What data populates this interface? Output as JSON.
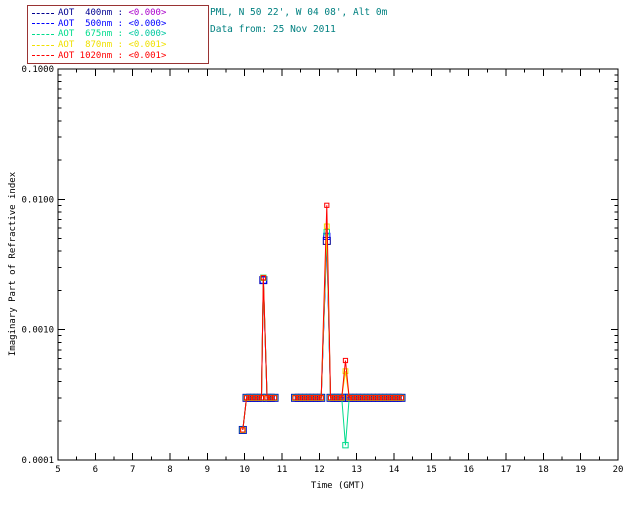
{
  "header": {
    "line1": "PML, N 50 22', W 04 08', Alt 0m",
    "line2": "Data from: 25 Nov 2011",
    "color": "#008080"
  },
  "legend": {
    "border_color": "#993333",
    "rows": [
      {
        "label": "AOT  400nm :",
        "value": "<0.000>",
        "color": "#000090",
        "value_color": "#aa00cc"
      },
      {
        "label": "AOT  500nm :",
        "value": "<0.000>",
        "color": "#0000ff",
        "value_color": "#0000ff"
      },
      {
        "label": "AOT  675nm :",
        "value": "<0.000>",
        "color": "#00dc8c",
        "value_color": "#00c8a0"
      },
      {
        "label": "AOT  870nm :",
        "value": "<0.001>",
        "color": "#f0e000",
        "value_color": "#f0e000"
      },
      {
        "label": "AOT 1020nm :",
        "value": "<0.001>",
        "color": "#ff0000",
        "value_color": "#ff0000"
      }
    ]
  },
  "chart_data": {
    "type": "line",
    "title": "",
    "xlabel": "Time (GMT)",
    "ylabel": "Imaginary Part of Refractive index",
    "xlim": [
      5,
      20
    ],
    "ylim": [
      0.0001,
      0.1
    ],
    "yscale": "log",
    "grid": false,
    "legend_position": "top-left",
    "xtick_values": [
      5,
      6,
      7,
      8,
      9,
      10,
      11,
      12,
      13,
      14,
      15,
      16,
      17,
      18,
      19,
      20
    ],
    "xtick_labels": [
      "5",
      "6",
      "7",
      "8",
      "9",
      "10",
      "11",
      "12",
      "13",
      "14",
      "15",
      "16",
      "17",
      "18",
      "19",
      "20"
    ],
    "ytick_values": [
      0.0001,
      0.001,
      0.01,
      0.1
    ],
    "ytick_labels": [
      "0.0001",
      "0.0010",
      "0.0100",
      "0.1000"
    ],
    "marker": "open-square",
    "series": [
      {
        "name": "AOT 400nm",
        "wavelength_nm": 400,
        "color": "#000090",
        "marker_size": 7,
        "segments": [
          {
            "x": [
              9.95,
              10.05,
              10.15,
              10.25,
              10.35,
              10.45,
              10.5,
              10.6,
              10.7,
              10.8
            ],
            "y": [
              0.00017,
              0.0003,
              0.0003,
              0.0003,
              0.0003,
              0.0003,
              0.0024,
              0.0003,
              0.0003,
              0.0003
            ]
          },
          {
            "x": [
              11.35,
              11.45,
              11.55,
              11.65,
              11.75,
              11.85,
              11.95,
              12.05,
              12.2,
              12.3,
              12.4,
              12.5,
              12.6,
              12.7,
              12.8,
              12.9,
              13.0,
              13.1,
              13.2,
              13.3,
              13.4,
              13.5,
              13.6,
              13.7,
              13.8,
              13.9,
              14.0,
              14.1,
              14.2
            ],
            "y": [
              0.0003,
              0.0003,
              0.0003,
              0.0003,
              0.0003,
              0.0003,
              0.0003,
              0.0003,
              0.0048,
              0.0003,
              0.0003,
              0.0003,
              0.0003,
              0.0003,
              0.0003,
              0.0003,
              0.0003,
              0.0003,
              0.0003,
              0.0003,
              0.0003,
              0.0003,
              0.0003,
              0.0003,
              0.0003,
              0.0003,
              0.0003,
              0.0003,
              0.0003
            ]
          }
        ]
      },
      {
        "name": "AOT 500nm",
        "wavelength_nm": 500,
        "color": "#0000ff",
        "marker_size": 6.2,
        "segments": [
          {
            "x": [
              9.95,
              10.05,
              10.15,
              10.25,
              10.35,
              10.45,
              10.5,
              10.6,
              10.7,
              10.8
            ],
            "y": [
              0.00017,
              0.0003,
              0.0003,
              0.0003,
              0.0003,
              0.0003,
              0.0024,
              0.0003,
              0.0003,
              0.0003
            ]
          },
          {
            "x": [
              11.35,
              11.45,
              11.55,
              11.65,
              11.75,
              11.85,
              11.95,
              12.05,
              12.2,
              12.3,
              12.4,
              12.5,
              12.6,
              12.7,
              12.8,
              12.9,
              13.0,
              13.1,
              13.2,
              13.3,
              13.4,
              13.5,
              13.6,
              13.7,
              13.8,
              13.9,
              14.0,
              14.1,
              14.2
            ],
            "y": [
              0.0003,
              0.0003,
              0.0003,
              0.0003,
              0.0003,
              0.0003,
              0.0003,
              0.0003,
              0.0052,
              0.0003,
              0.0003,
              0.0003,
              0.0003,
              0.0003,
              0.0003,
              0.0003,
              0.0003,
              0.0003,
              0.0003,
              0.0003,
              0.0003,
              0.0003,
              0.0003,
              0.0003,
              0.0003,
              0.0003,
              0.0003,
              0.0003,
              0.0003
            ]
          }
        ]
      },
      {
        "name": "AOT 675nm",
        "wavelength_nm": 675,
        "color": "#00dc8c",
        "marker_size": 5.4,
        "segments": [
          {
            "x": [
              9.95,
              10.05,
              10.15,
              10.25,
              10.35,
              10.45,
              10.5,
              10.6,
              10.7,
              10.8
            ],
            "y": [
              0.00017,
              0.0003,
              0.0003,
              0.0003,
              0.0003,
              0.0003,
              0.0025,
              0.0003,
              0.0003,
              0.0003
            ]
          },
          {
            "x": [
              11.35,
              11.45,
              11.55,
              11.65,
              11.75,
              11.85,
              11.95,
              12.05,
              12.2,
              12.3,
              12.4,
              12.5,
              12.6,
              12.7,
              12.8,
              12.9,
              13.0,
              13.1,
              13.2,
              13.3,
              13.4,
              13.5,
              13.6,
              13.7,
              13.8,
              13.9,
              14.0,
              14.1,
              14.2
            ],
            "y": [
              0.0003,
              0.0003,
              0.0003,
              0.0003,
              0.0003,
              0.0003,
              0.0003,
              0.0003,
              0.0056,
              0.0003,
              0.0003,
              0.0003,
              0.0003,
              0.00013,
              0.0003,
              0.0003,
              0.0003,
              0.0003,
              0.0003,
              0.0003,
              0.0003,
              0.0003,
              0.0003,
              0.0003,
              0.0003,
              0.0003,
              0.0003,
              0.0003,
              0.0003
            ]
          }
        ]
      },
      {
        "name": "AOT 870nm",
        "wavelength_nm": 870,
        "color": "#f0e000",
        "marker_size": 4.8,
        "segments": [
          {
            "x": [
              9.95,
              10.05,
              10.15,
              10.25,
              10.35,
              10.45,
              10.5,
              10.6,
              10.7,
              10.8
            ],
            "y": [
              0.00017,
              0.0003,
              0.0003,
              0.0003,
              0.0003,
              0.0003,
              0.0025,
              0.0003,
              0.0003,
              0.0003
            ]
          },
          {
            "x": [
              11.35,
              11.45,
              11.55,
              11.65,
              11.75,
              11.85,
              11.95,
              12.05,
              12.2,
              12.3,
              12.4,
              12.5,
              12.6,
              12.7,
              12.8,
              12.9,
              13.0,
              13.1,
              13.2,
              13.3,
              13.4,
              13.5,
              13.6,
              13.7,
              13.8,
              13.9,
              14.0,
              14.1,
              14.2
            ],
            "y": [
              0.0003,
              0.0003,
              0.0003,
              0.0003,
              0.0003,
              0.0003,
              0.0003,
              0.0003,
              0.0062,
              0.0003,
              0.0003,
              0.0003,
              0.0003,
              0.00048,
              0.0003,
              0.0003,
              0.0003,
              0.0003,
              0.0003,
              0.0003,
              0.0003,
              0.0003,
              0.0003,
              0.0003,
              0.0003,
              0.0003,
              0.0003,
              0.0003,
              0.0003
            ]
          }
        ]
      },
      {
        "name": "AOT 1020nm",
        "wavelength_nm": 1020,
        "color": "#ff0000",
        "marker_size": 4.2,
        "segments": [
          {
            "x": [
              9.95,
              10.05,
              10.15,
              10.25,
              10.35,
              10.45,
              10.5,
              10.6,
              10.7,
              10.8
            ],
            "y": [
              0.00017,
              0.0003,
              0.0003,
              0.0003,
              0.0003,
              0.0003,
              0.0025,
              0.0003,
              0.0003,
              0.0003
            ]
          },
          {
            "x": [
              11.35,
              11.45,
              11.55,
              11.65,
              11.75,
              11.85,
              11.95,
              12.05,
              12.2,
              12.3,
              12.4,
              12.5,
              12.6,
              12.7,
              12.8,
              12.9,
              13.0,
              13.1,
              13.2,
              13.3,
              13.4,
              13.5,
              13.6,
              13.7,
              13.8,
              13.9,
              14.0,
              14.1,
              14.2
            ],
            "y": [
              0.0003,
              0.0003,
              0.0003,
              0.0003,
              0.0003,
              0.0003,
              0.0003,
              0.0003,
              0.009,
              0.0003,
              0.0003,
              0.0003,
              0.0003,
              0.00058,
              0.0003,
              0.0003,
              0.0003,
              0.0003,
              0.0003,
              0.0003,
              0.0003,
              0.0003,
              0.0003,
              0.0003,
              0.0003,
              0.0003,
              0.0003,
              0.0003,
              0.0003
            ]
          }
        ]
      }
    ]
  }
}
